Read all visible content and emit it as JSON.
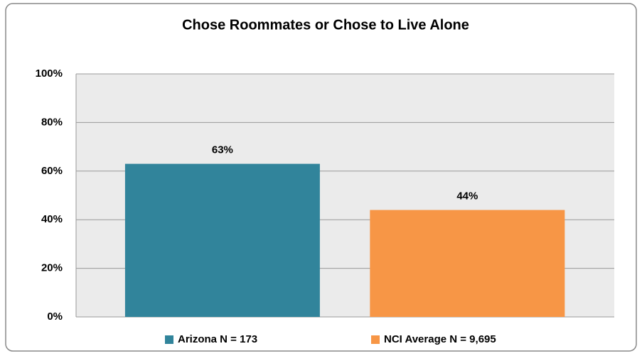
{
  "chart_data": {
    "type": "bar",
    "title": "Chose Roommates or Chose to Live Alone",
    "series": [
      {
        "name": "Arizona N = 173",
        "color": "#31849b",
        "values": [
          63
        ],
        "value_labels": [
          "63%"
        ]
      },
      {
        "name": "NCI Average N = 9,695",
        "color": "#f79646",
        "values": [
          44
        ],
        "value_labels": [
          "44%"
        ]
      }
    ],
    "ylim": [
      0,
      100
    ],
    "yticks": [
      {
        "value": 0,
        "label": "0%"
      },
      {
        "value": 20,
        "label": "20%"
      },
      {
        "value": 40,
        "label": "40%"
      },
      {
        "value": 60,
        "label": "60%"
      },
      {
        "value": 80,
        "label": "80%"
      },
      {
        "value": 100,
        "label": "100%"
      }
    ],
    "grid": true,
    "legend": "bottom"
  }
}
